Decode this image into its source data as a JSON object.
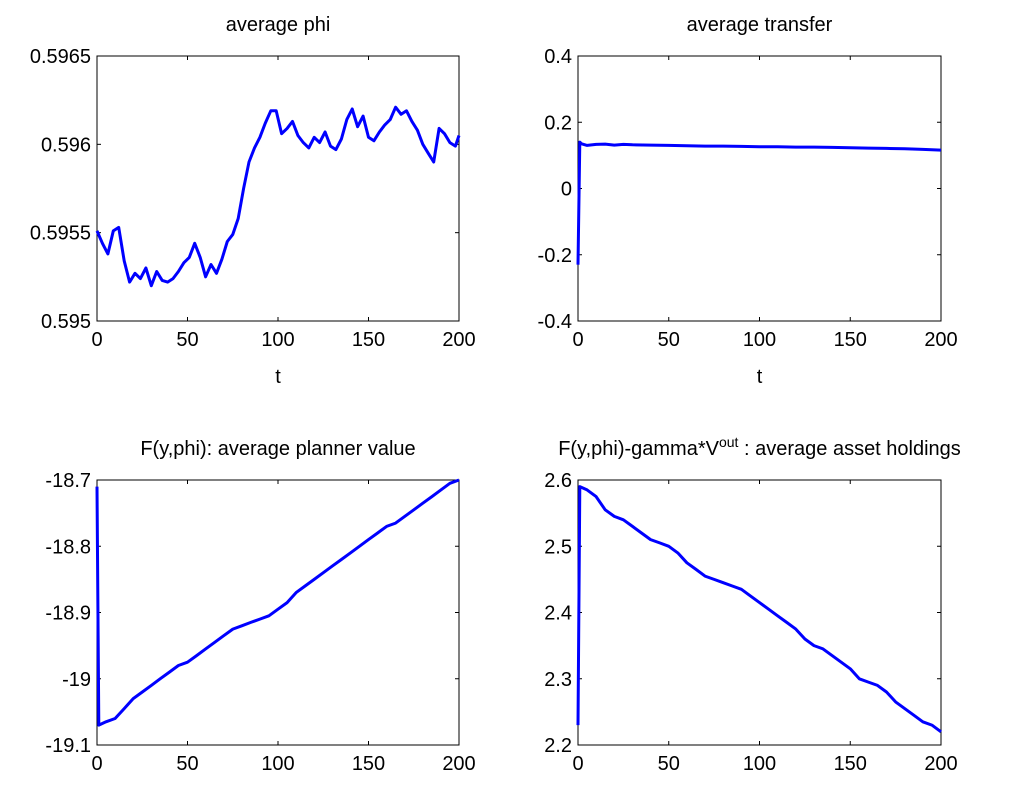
{
  "chart_data": [
    {
      "type": "line",
      "title": "average phi",
      "xlabel": "t",
      "ylabel": "",
      "xlim": [
        0,
        200
      ],
      "ylim": [
        0.595,
        0.5965
      ],
      "xticks": [
        "0",
        "50",
        "100",
        "150",
        "200"
      ],
      "yticks": [
        "0.595",
        "0.5955",
        "0.596",
        "0.5965"
      ],
      "color": "#0000ff",
      "grid": false,
      "series": [
        {
          "x": [
            0,
            3,
            6,
            9,
            12,
            15,
            18,
            21,
            24,
            27,
            30,
            33,
            36,
            39,
            42,
            45,
            48,
            51,
            54,
            57,
            60,
            63,
            66,
            69,
            72,
            75,
            78,
            81,
            84,
            87,
            90,
            93,
            96,
            99,
            102,
            105,
            108,
            111,
            114,
            117,
            120,
            123,
            126,
            129,
            132,
            135,
            138,
            141,
            144,
            147,
            150,
            153,
            156,
            159,
            162,
            165,
            168,
            171,
            174,
            177,
            180,
            183,
            186,
            189,
            192,
            195,
            198,
            200
          ],
          "y": [
            0.59551,
            0.59544,
            0.59538,
            0.59551,
            0.59553,
            0.59534,
            0.59522,
            0.59527,
            0.59524,
            0.5953,
            0.5952,
            0.59528,
            0.59523,
            0.59522,
            0.59524,
            0.59528,
            0.59533,
            0.59536,
            0.59544,
            0.59536,
            0.59525,
            0.59532,
            0.59527,
            0.59535,
            0.59545,
            0.59549,
            0.59558,
            0.59575,
            0.5959,
            0.59598,
            0.59604,
            0.59612,
            0.59619,
            0.59619,
            0.59606,
            0.59609,
            0.59613,
            0.59605,
            0.59601,
            0.59598,
            0.59604,
            0.59601,
            0.59607,
            0.59599,
            0.59597,
            0.59603,
            0.59614,
            0.5962,
            0.5961,
            0.59616,
            0.59604,
            0.59602,
            0.59607,
            0.59611,
            0.59614,
            0.59621,
            0.59617,
            0.59619,
            0.59613,
            0.59608,
            0.596,
            0.59595,
            0.5959,
            0.59609,
            0.59606,
            0.59601,
            0.59599,
            0.59605
          ]
        }
      ]
    },
    {
      "type": "line",
      "title": "average transfer",
      "xlabel": "t",
      "ylabel": "",
      "xlim": [
        0,
        200
      ],
      "ylim": [
        -0.4,
        0.4
      ],
      "xticks": [
        "0",
        "50",
        "100",
        "150",
        "200"
      ],
      "yticks": [
        "-0.4",
        "-0.2",
        "0",
        "0.2",
        "0.4"
      ],
      "color": "#0000ff",
      "grid": false,
      "series": [
        {
          "x": [
            0,
            1,
            2,
            5,
            10,
            15,
            20,
            25,
            30,
            40,
            50,
            60,
            70,
            80,
            90,
            100,
            110,
            120,
            130,
            140,
            150,
            160,
            170,
            180,
            190,
            195,
            200
          ],
          "y": [
            -0.23,
            0.14,
            0.135,
            0.13,
            0.133,
            0.134,
            0.131,
            0.133,
            0.132,
            0.131,
            0.13,
            0.129,
            0.128,
            0.128,
            0.127,
            0.126,
            0.126,
            0.125,
            0.125,
            0.124,
            0.123,
            0.122,
            0.121,
            0.12,
            0.118,
            0.117,
            0.116
          ]
        }
      ]
    },
    {
      "type": "line",
      "title": "F(y,phi): average planner value",
      "xlabel": "t",
      "ylabel": "",
      "xlim": [
        0,
        200
      ],
      "ylim": [
        -19.1,
        -18.7
      ],
      "xticks": [
        "0",
        "50",
        "100",
        "150",
        "200"
      ],
      "yticks": [
        "-19.1",
        "-19",
        "-18.9",
        "-18.8",
        "-18.7"
      ],
      "color": "#0000ff",
      "grid": false,
      "series": [
        {
          "x": [
            0,
            1,
            5,
            10,
            15,
            20,
            25,
            30,
            35,
            40,
            45,
            50,
            55,
            60,
            65,
            70,
            75,
            80,
            85,
            90,
            95,
            100,
            105,
            110,
            115,
            120,
            125,
            130,
            135,
            140,
            145,
            150,
            155,
            160,
            165,
            170,
            175,
            180,
            185,
            190,
            195,
            200
          ],
          "y": [
            -18.71,
            -19.07,
            -19.065,
            -19.06,
            -19.045,
            -19.03,
            -19.02,
            -19.01,
            -19.0,
            -18.99,
            -18.98,
            -18.975,
            -18.965,
            -18.955,
            -18.945,
            -18.935,
            -18.925,
            -18.92,
            -18.915,
            -18.91,
            -18.905,
            -18.895,
            -18.885,
            -18.87,
            -18.86,
            -18.85,
            -18.84,
            -18.83,
            -18.82,
            -18.81,
            -18.8,
            -18.79,
            -18.78,
            -18.77,
            -18.765,
            -18.755,
            -18.745,
            -18.735,
            -18.725,
            -18.715,
            -18.705,
            -18.7
          ]
        }
      ]
    },
    {
      "type": "line",
      "title": "F(y,phi)-gamma*V",
      "title_superscript": "out",
      "title_suffix": " : average asset holdings",
      "xlabel": "t",
      "ylabel": "",
      "xlim": [
        0,
        200
      ],
      "ylim": [
        2.2,
        2.6
      ],
      "xticks": [
        "0",
        "50",
        "100",
        "150",
        "200"
      ],
      "yticks": [
        "2.2",
        "2.3",
        "2.4",
        "2.5",
        "2.6"
      ],
      "color": "#0000ff",
      "grid": false,
      "series": [
        {
          "x": [
            0,
            1,
            5,
            10,
            15,
            20,
            25,
            30,
            35,
            40,
            45,
            50,
            55,
            60,
            65,
            70,
            75,
            80,
            85,
            90,
            95,
            100,
            105,
            110,
            115,
            120,
            125,
            130,
            135,
            140,
            145,
            150,
            155,
            160,
            165,
            170,
            175,
            180,
            185,
            190,
            195,
            200
          ],
          "y": [
            2.23,
            2.59,
            2.585,
            2.575,
            2.555,
            2.545,
            2.54,
            2.53,
            2.52,
            2.51,
            2.505,
            2.5,
            2.49,
            2.475,
            2.465,
            2.455,
            2.45,
            2.445,
            2.44,
            2.435,
            2.425,
            2.415,
            2.405,
            2.395,
            2.385,
            2.375,
            2.36,
            2.35,
            2.345,
            2.335,
            2.325,
            2.315,
            2.3,
            2.295,
            2.29,
            2.28,
            2.265,
            2.255,
            2.245,
            2.235,
            2.23,
            2.22
          ]
        }
      ]
    }
  ]
}
